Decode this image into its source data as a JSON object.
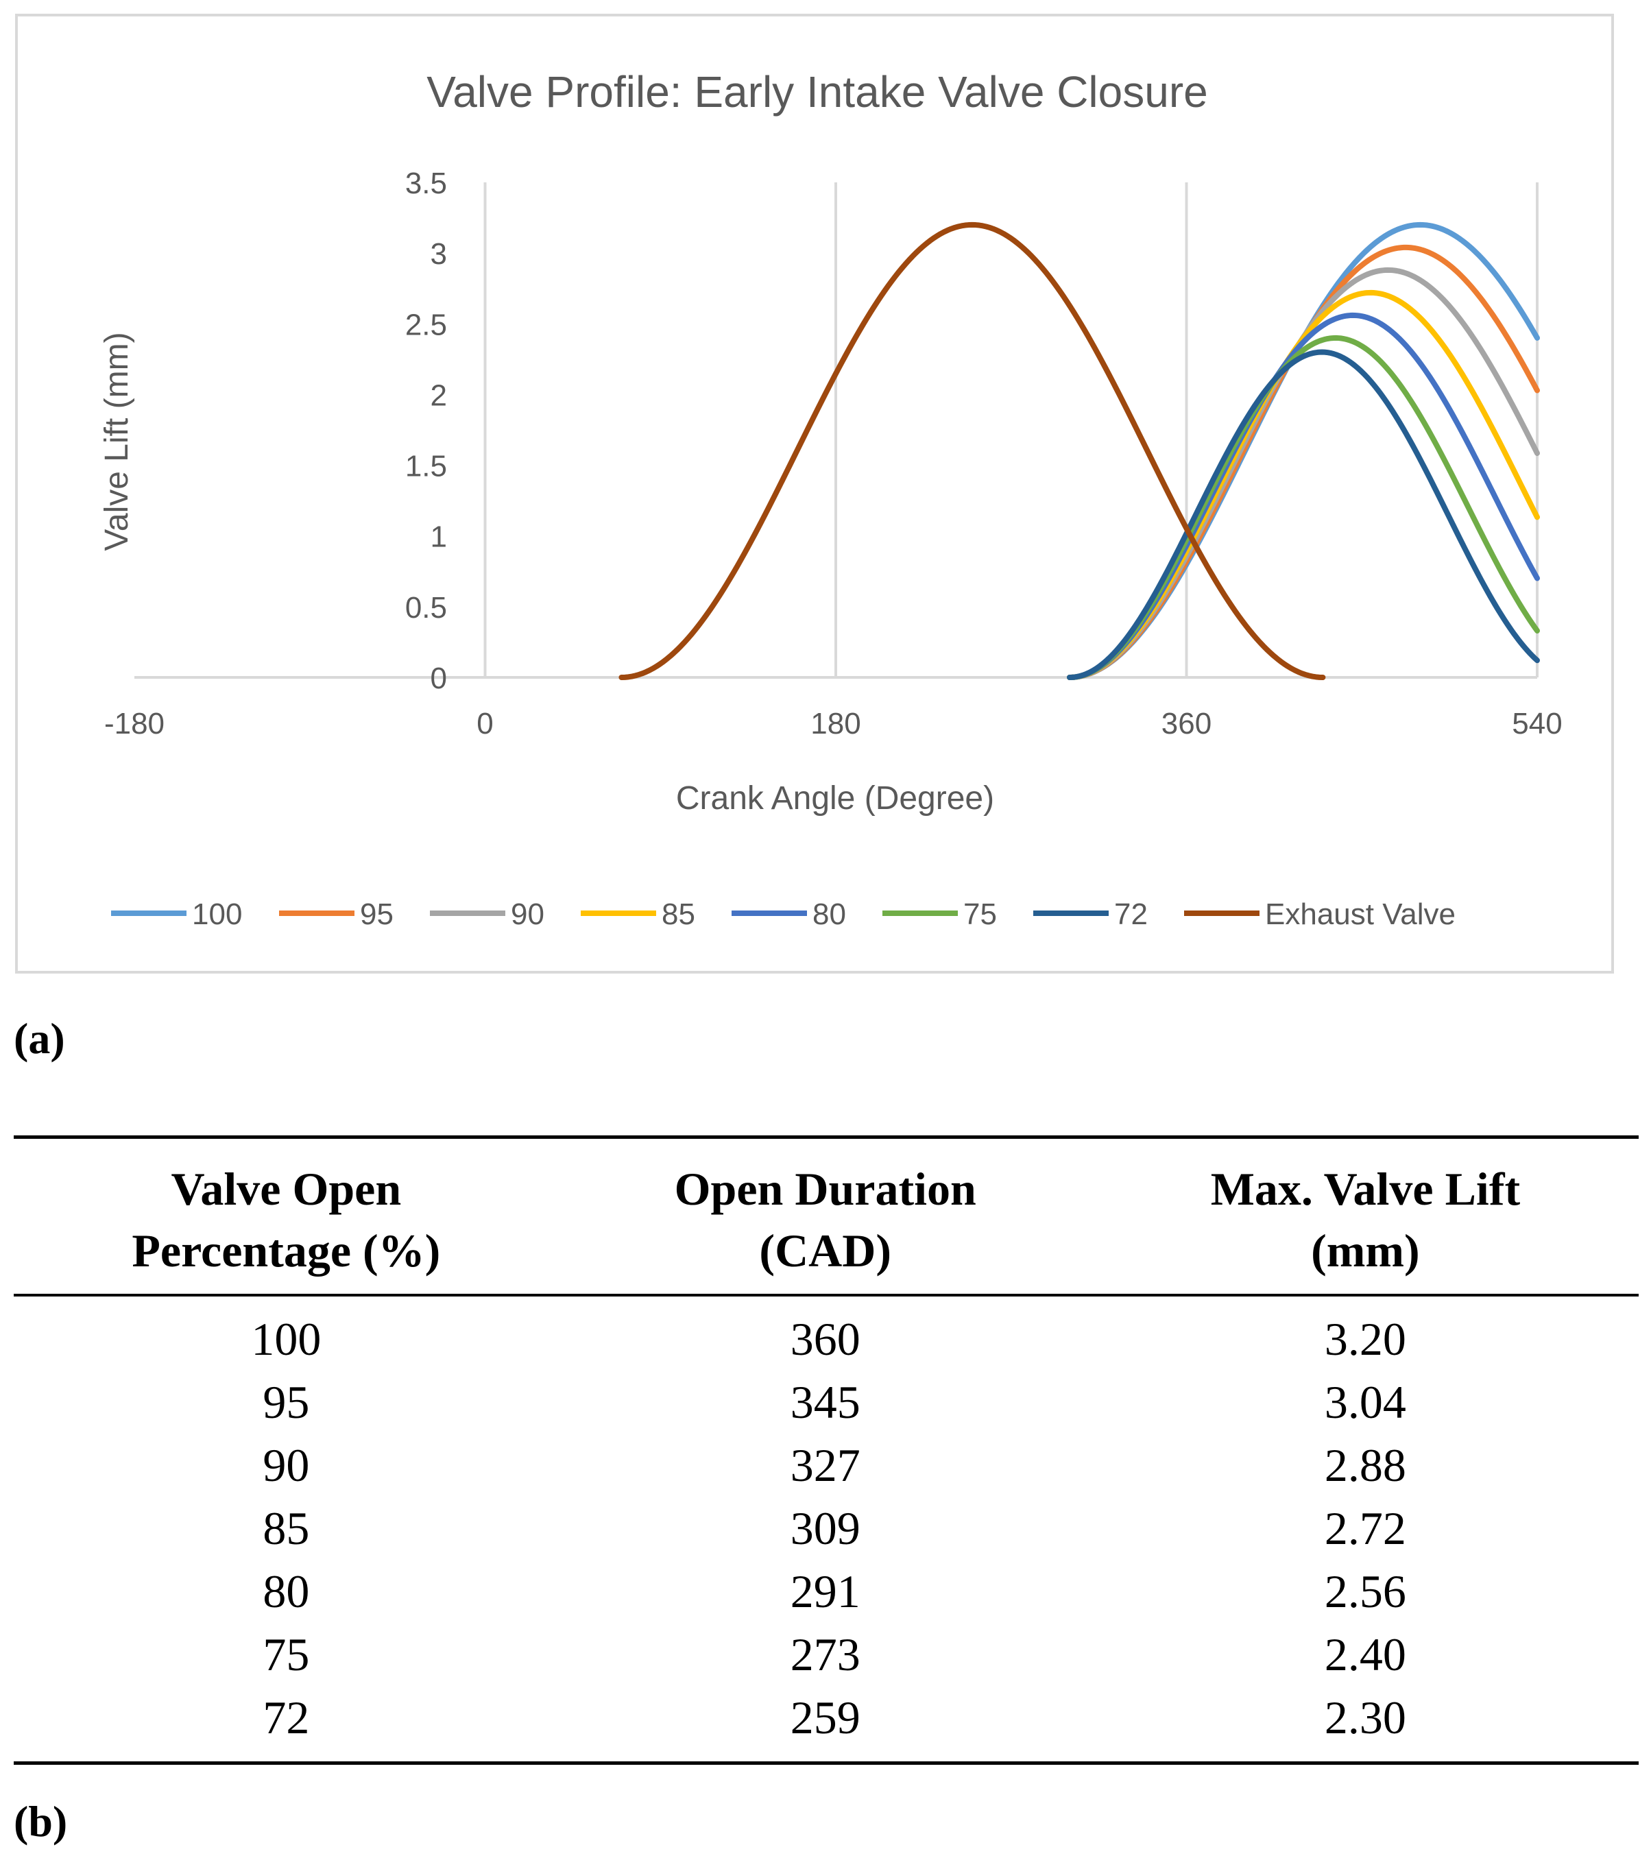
{
  "chart_data": {
    "type": "line",
    "title": "Valve Profile: Early Intake Valve Closure",
    "xlabel": "Crank Angle (Degree)",
    "ylabel": "Valve Lift (mm)",
    "xlim": [
      -180,
      540
    ],
    "ylim": [
      0,
      3.5
    ],
    "x_ticks": [
      "-180",
      "0",
      "180",
      "360",
      "540"
    ],
    "y_ticks": [
      "0",
      "0.5",
      "1",
      "1.5",
      "2",
      "2.5",
      "3",
      "3.5"
    ],
    "grid": "vertical",
    "legend_position": "bottom",
    "series": [
      {
        "name": "100",
        "color": "#5b9bd5",
        "open_deg": 300,
        "duration_cad": 360,
        "peak_lift": 3.2
      },
      {
        "name": "95",
        "color": "#ed7d31",
        "open_deg": 300,
        "duration_cad": 345,
        "peak_lift": 3.04
      },
      {
        "name": "90",
        "color": "#a5a5a5",
        "open_deg": 300,
        "duration_cad": 327,
        "peak_lift": 2.88
      },
      {
        "name": "85",
        "color": "#ffc000",
        "open_deg": 300,
        "duration_cad": 309,
        "peak_lift": 2.72
      },
      {
        "name": "80",
        "color": "#4472c4",
        "open_deg": 300,
        "duration_cad": 291,
        "peak_lift": 2.56
      },
      {
        "name": "75",
        "color": "#70ad47",
        "open_deg": 300,
        "duration_cad": 273,
        "peak_lift": 2.4
      },
      {
        "name": "72",
        "color": "#255e91",
        "open_deg": 300,
        "duration_cad": 259,
        "peak_lift": 2.3
      },
      {
        "name": "Exhaust Valve",
        "color": "#9e480e",
        "open_deg": 70,
        "duration_cad": 360,
        "peak_lift": 3.2
      }
    ]
  },
  "labels": {
    "figure_a": "(a)",
    "figure_b": "(b)"
  },
  "table": {
    "headers": [
      {
        "line1": "Valve Open",
        "line2": "Percentage (%)"
      },
      {
        "line1": "Open Duration",
        "line2": "(CAD)"
      },
      {
        "line1": "Max. Valve Lift",
        "line2": "(mm)"
      }
    ],
    "rows": [
      [
        "100",
        "360",
        "3.20"
      ],
      [
        "95",
        "345",
        "3.04"
      ],
      [
        "90",
        "327",
        "2.88"
      ],
      [
        "85",
        "309",
        "2.72"
      ],
      [
        "80",
        "291",
        "2.56"
      ],
      [
        "75",
        "273",
        "2.40"
      ],
      [
        "72",
        "259",
        "2.30"
      ]
    ]
  }
}
